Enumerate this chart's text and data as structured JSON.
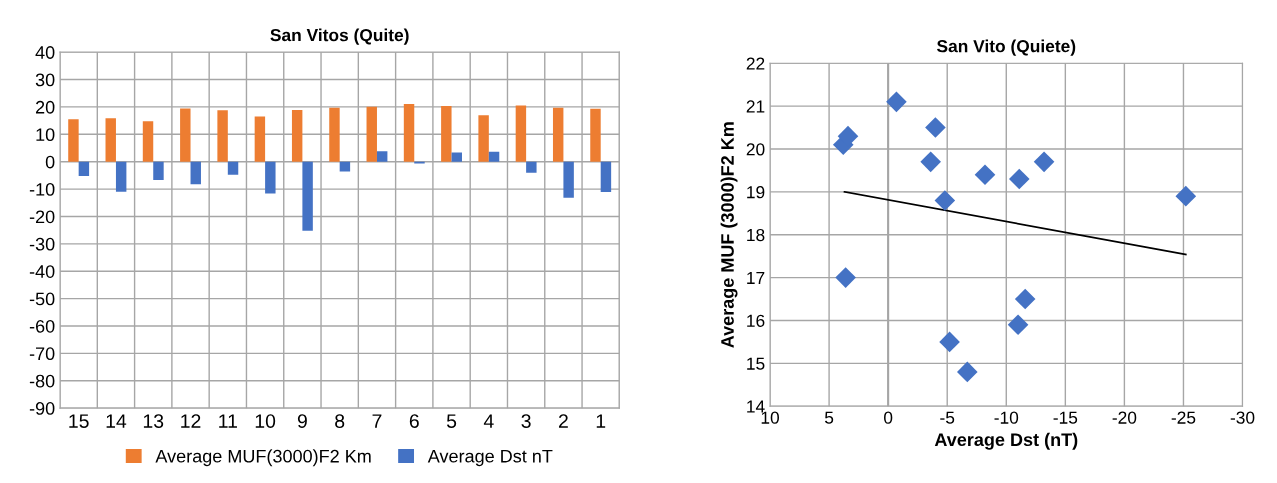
{
  "chart_data": [
    {
      "type": "bar",
      "title": "San Vitos (Quite)",
      "categories": [
        "15",
        "14",
        "13",
        "12",
        "11",
        "10",
        "9",
        "8",
        "7",
        "6",
        "5",
        "4",
        "3",
        "2",
        "1"
      ],
      "series": [
        {
          "name": "Average MUF(3000)F2 Km",
          "color": "#ed7d31",
          "values": [
            15.5,
            15.9,
            14.8,
            19.4,
            18.8,
            16.5,
            18.9,
            19.7,
            20.1,
            21.1,
            20.3,
            17.0,
            20.5,
            19.7,
            19.3
          ]
        },
        {
          "name": "Average Dst nT",
          "color": "#4472c4",
          "values": [
            -5.2,
            -11.0,
            -6.7,
            -8.2,
            -4.8,
            -11.6,
            -25.2,
            -3.6,
            3.8,
            -0.7,
            3.4,
            3.6,
            -4.0,
            -13.2,
            -11.1
          ]
        }
      ],
      "ylim": [
        -90,
        40
      ],
      "yticks": [
        -90,
        -80,
        -70,
        -60,
        -50,
        -40,
        -30,
        -20,
        -10,
        0,
        10,
        20,
        30,
        40
      ],
      "grid": true,
      "legend": "bottom"
    },
    {
      "type": "scatter",
      "title": "San Vito (Quiete)",
      "xlabel": "Average Dst (nT)",
      "ylabel": "Average MUF (3000)F2 Km",
      "series": [
        {
          "type": "scatter",
          "color": "#4472c4",
          "marker": "diamond",
          "x": [
            -5.2,
            -11.0,
            -6.7,
            -8.2,
            -4.8,
            -11.6,
            -25.2,
            -3.6,
            3.8,
            -0.7,
            3.4,
            3.6,
            -4.0,
            -13.2,
            -11.1
          ],
          "values": [
            15.5,
            15.9,
            14.8,
            19.4,
            18.8,
            16.5,
            18.9,
            19.7,
            20.1,
            21.1,
            20.3,
            17.0,
            20.5,
            19.7,
            19.3
          ]
        },
        {
          "type": "line",
          "color": "#000000",
          "marker": "none",
          "x": [
            3.7,
            -25.2
          ],
          "values": [
            19.0,
            17.54
          ]
        }
      ],
      "xlim": [
        10,
        -30
      ],
      "xticks": [
        10,
        5,
        0,
        -5,
        -10,
        -15,
        -20,
        -25,
        -30
      ],
      "ylim": [
        14,
        22
      ],
      "yticks": [
        14,
        15,
        16,
        17,
        18,
        19,
        20,
        21,
        22
      ],
      "grid": true,
      "ref_lines": [
        {
          "axis": "x",
          "value": 0,
          "color": "#a6a6a6"
        }
      ]
    }
  ]
}
